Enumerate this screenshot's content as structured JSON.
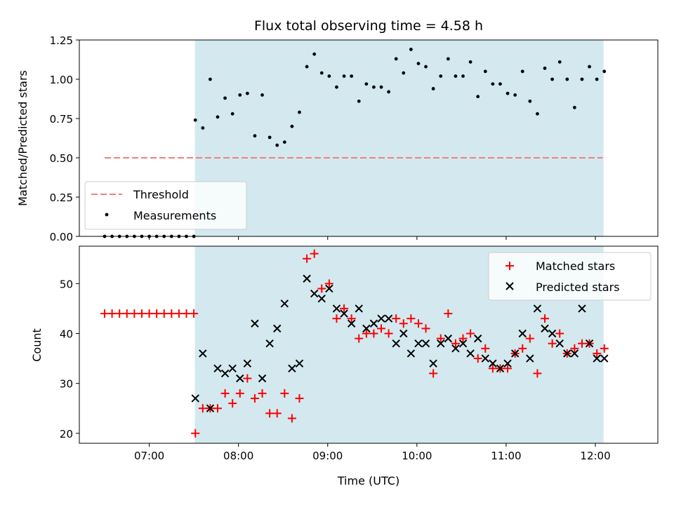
{
  "figure": {
    "title": "Flux total observing time = 4.58 h",
    "xlabel": "Time (UTC)",
    "x_ticks": [
      "07:00",
      "08:00",
      "09:00",
      "10:00",
      "11:00",
      "12:00"
    ],
    "x_tick_minutes": [
      420,
      480,
      540,
      600,
      660,
      720
    ],
    "x_range_minutes": [
      373,
      762
    ],
    "shaded_span_minutes": [
      450.7,
      725.5
    ],
    "shade_color": "#d3e9ef",
    "colors": {
      "threshold": "#f08080",
      "measurement": "#000000",
      "matched": "#ff0000",
      "predicted": "#000000"
    }
  },
  "chart_data": [
    {
      "type": "scatter",
      "ylabel": "Matched/Predicted stars",
      "ylim": [
        0,
        1.25
      ],
      "y_ticks": [
        "0.00",
        "0.25",
        "0.50",
        "0.75",
        "1.00",
        "1.25"
      ],
      "y_tick_values": [
        0,
        0.25,
        0.5,
        0.75,
        1.0,
        1.25
      ],
      "threshold": {
        "value": 0.5,
        "label": "Threshold",
        "x_range": [
          390,
          725
        ]
      },
      "legend_position": "lower-left",
      "series": [
        {
          "name": "Measurements",
          "x": [
            390,
            395,
            400,
            405,
            410,
            415,
            420,
            425,
            430,
            435,
            440,
            445,
            450,
            451,
            456,
            461,
            466,
            471,
            476,
            481,
            486,
            491,
            496,
            501,
            506,
            511,
            516,
            521,
            526,
            531,
            536,
            541,
            546,
            551,
            556,
            561,
            566,
            571,
            576,
            581,
            586,
            591,
            596,
            601,
            606,
            611,
            616,
            621,
            626,
            631,
            636,
            641,
            646,
            651,
            656,
            661,
            666,
            671,
            676,
            681,
            686,
            691,
            696,
            701,
            706,
            711,
            716,
            721,
            726
          ],
          "y": [
            0,
            0,
            0,
            0,
            0,
            0,
            0,
            0,
            0,
            0,
            0,
            0,
            0,
            0.74,
            0.69,
            1.0,
            0.76,
            0.88,
            0.78,
            0.9,
            0.91,
            0.64,
            0.9,
            0.63,
            0.58,
            0.6,
            0.7,
            0.79,
            1.08,
            1.16,
            1.04,
            1.02,
            0.95,
            1.02,
            1.02,
            0.86,
            0.97,
            0.95,
            0.95,
            0.92,
            1.13,
            1.04,
            1.19,
            1.1,
            1.08,
            0.94,
            1.02,
            1.13,
            1.02,
            1.02,
            1.11,
            0.89,
            1.05,
            0.97,
            0.97,
            0.91,
            0.9,
            1.05,
            0.86,
            0.78,
            1.07,
            1.0,
            1.11,
            1.0,
            0.82,
            1.0,
            1.08,
            1.0,
            1.05
          ]
        }
      ]
    },
    {
      "type": "scatter",
      "ylabel": "Count",
      "ylim": [
        18,
        57.5
      ],
      "y_ticks": [
        "20",
        "30",
        "40",
        "50"
      ],
      "y_tick_values": [
        20,
        30,
        40,
        50
      ],
      "legend_position": "top-right",
      "series": [
        {
          "name": "Matched stars",
          "marker": "plus",
          "x": [
            390,
            395,
            400,
            405,
            410,
            415,
            420,
            425,
            430,
            435,
            440,
            445,
            450,
            451,
            456,
            461,
            466,
            471,
            476,
            481,
            486,
            491,
            496,
            501,
            506,
            511,
            516,
            521,
            526,
            531,
            536,
            541,
            546,
            551,
            556,
            561,
            566,
            571,
            576,
            581,
            586,
            591,
            596,
            601,
            606,
            611,
            616,
            621,
            626,
            631,
            636,
            641,
            646,
            651,
            656,
            661,
            666,
            671,
            676,
            681,
            686,
            691,
            696,
            701,
            706,
            711,
            716,
            721,
            726
          ],
          "y": [
            44,
            44,
            44,
            44,
            44,
            44,
            44,
            44,
            44,
            44,
            44,
            44,
            44,
            20,
            25,
            25,
            25,
            28,
            26,
            28,
            31,
            27,
            28,
            24,
            24,
            28,
            23,
            27,
            55,
            56,
            49,
            50,
            43,
            45,
            43,
            39,
            40,
            40,
            41,
            40,
            43,
            42,
            43,
            42,
            41,
            32,
            39,
            44,
            38,
            39,
            40,
            35,
            37,
            33,
            33,
            33,
            36,
            37,
            39,
            32,
            43,
            38,
            40,
            36,
            37,
            38,
            38,
            36,
            37
          ]
        },
        {
          "name": "Predicted stars",
          "marker": "x",
          "x": [
            451,
            456,
            461,
            466,
            471,
            476,
            481,
            486,
            491,
            496,
            501,
            506,
            511,
            516,
            521,
            526,
            531,
            536,
            541,
            546,
            551,
            556,
            561,
            566,
            571,
            576,
            581,
            586,
            591,
            596,
            601,
            606,
            611,
            616,
            621,
            626,
            631,
            636,
            641,
            646,
            651,
            656,
            661,
            666,
            671,
            676,
            681,
            686,
            691,
            696,
            701,
            706,
            711,
            716,
            721,
            726
          ],
          "y": [
            27,
            36,
            25,
            33,
            32,
            33,
            31,
            34,
            42,
            31,
            38,
            41,
            46,
            33,
            34,
            51,
            48,
            47,
            49,
            45,
            44,
            42,
            45,
            41,
            42,
            43,
            43,
            38,
            40,
            36,
            38,
            38,
            34,
            38,
            39,
            37,
            38,
            36,
            39,
            35,
            34,
            33,
            34,
            36,
            40,
            35,
            45,
            41,
            40,
            38,
            36,
            36,
            45,
            38,
            35,
            35
          ]
        }
      ]
    }
  ]
}
